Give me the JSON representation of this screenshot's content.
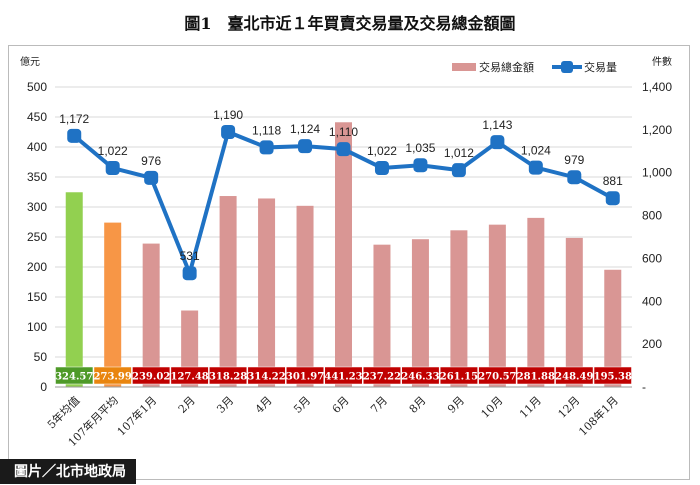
{
  "chart_data": {
    "type": "bar+line",
    "title": "圖1　臺北市近１年買賣交易量及交易總金額圖",
    "left_axis_unit": "億元",
    "right_axis_unit": "件數",
    "left_ylim": [
      0,
      500
    ],
    "left_ticks": [
      0,
      50,
      100,
      150,
      200,
      250,
      300,
      350,
      400,
      450,
      500
    ],
    "right_ylim": [
      0,
      1400
    ],
    "right_ticks": [
      "-",
      "200",
      "400",
      "600",
      "800",
      "1,000",
      "1,200",
      "1,400"
    ],
    "legend_position": "top-right",
    "categories": [
      "5年均值",
      "107年月平均",
      "107年1月",
      "2月",
      "3月",
      "4月",
      "5月",
      "6月",
      "7月",
      "8月",
      "9月",
      "10月",
      "11月",
      "12月",
      "108年1月"
    ],
    "series": [
      {
        "name": "交易總金額",
        "type": "bar",
        "axis": "left",
        "color": "#d99694",
        "values": [
          324.57,
          273.99,
          239.02,
          127.48,
          318.28,
          314.22,
          301.97,
          441.23,
          237.22,
          246.33,
          261.15,
          270.57,
          281.88,
          248.49,
          195.38
        ],
        "value_labels": [
          "324.57",
          "273.99",
          "239.02",
          "127.48",
          "318.28",
          "314.22",
          "301.97",
          "441.23",
          "237.22",
          "246.33",
          "261.15",
          "270.57",
          "281.88",
          "248.49",
          "195.38"
        ],
        "bar_colors": [
          "#92d050",
          "#f79646"
        ],
        "label_box_colors": [
          "#4e9a28",
          "#e9850f",
          "#c00000"
        ]
      },
      {
        "name": "交易量",
        "type": "line",
        "axis": "right",
        "color": "#1f72c4",
        "values": [
          1172,
          1022,
          976,
          531,
          1190,
          1118,
          1124,
          1110,
          1022,
          1035,
          1012,
          1143,
          1024,
          979,
          881
        ],
        "value_labels": [
          "1,172",
          "1,022",
          "976",
          "531",
          "1,190",
          "1,118",
          "1,124",
          "1,110",
          "1,022",
          "1,035",
          "1,012",
          "1,143",
          "1,024",
          "979",
          "881"
        ]
      }
    ]
  },
  "credit": "圖片／北市地政局"
}
